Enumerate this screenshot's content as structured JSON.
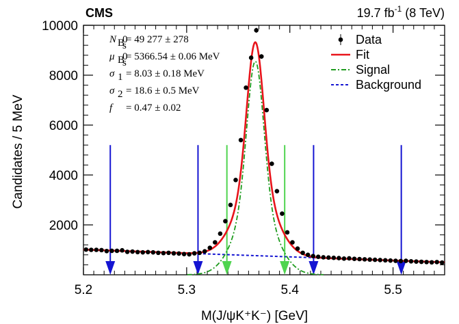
{
  "header": {
    "experiment": "CMS",
    "lumi_prefix": "19.7 fb",
    "lumi_sup": "-1",
    "lumi_suffix": " (8 TeV)"
  },
  "params": [
    {
      "sym": "N",
      "sub": "B",
      "subsub": "s",
      "sup": "0",
      "val": "= 49 277 ± 278"
    },
    {
      "sym": "μ",
      "sub": "B",
      "subsub": "s",
      "sup": "0",
      "val": "= 5366.54 ± 0.06 MeV"
    },
    {
      "sym": "σ",
      "sub": "1",
      "subsub": "",
      "sup": "",
      "val": "= 8.03 ± 0.18 MeV"
    },
    {
      "sym": "σ",
      "sub": "2",
      "subsub": "",
      "sup": "",
      "val": "= 18.6 ± 0.5 MeV"
    },
    {
      "sym": "f",
      "sub": "",
      "subsub": "",
      "sup": "",
      "val": "= 0.47 ± 0.02"
    }
  ],
  "legend": [
    {
      "label": "Data",
      "style": "marker",
      "color": "#000000"
    },
    {
      "label": "Fit",
      "style": "solid",
      "color": "#e8141b"
    },
    {
      "label": "Signal",
      "style": "dashdot",
      "color": "#1e9b1e"
    },
    {
      "label": "Background",
      "style": "dashed",
      "color": "#1414d2"
    }
  ],
  "chart_data": {
    "type": "scatter",
    "title": "",
    "xlabel": "M(J/ψK⁺K⁻) [GeV]",
    "ylabel": "Candidates / 5 MeV",
    "xlim": [
      5.2,
      5.55
    ],
    "ylim": [
      0,
      10000
    ],
    "xticks": [
      5.2,
      5.3,
      5.4,
      5.5
    ],
    "xtick_labels": [
      "5.2",
      "5.3",
      "5.4",
      "5.5"
    ],
    "yticks": [
      2000,
      4000,
      6000,
      8000,
      10000
    ],
    "ytick_labels": [
      "2000",
      "4000",
      "6000",
      "8000",
      "10000"
    ],
    "grid": false,
    "legend_position": "top-right",
    "data_series": {
      "name": "Data",
      "x": [
        5.2025,
        5.2075,
        5.2125,
        5.2175,
        5.2225,
        5.2275,
        5.2325,
        5.2375,
        5.2425,
        5.2475,
        5.2525,
        5.2575,
        5.2625,
        5.2675,
        5.2725,
        5.2775,
        5.2825,
        5.2875,
        5.2925,
        5.2975,
        5.3025,
        5.3075,
        5.3125,
        5.3175,
        5.3225,
        5.3275,
        5.3325,
        5.3375,
        5.3425,
        5.3475,
        5.3525,
        5.3575,
        5.3625,
        5.3675,
        5.3725,
        5.3775,
        5.3825,
        5.3875,
        5.3925,
        5.3975,
        5.4025,
        5.4075,
        5.4125,
        5.4175,
        5.4225,
        5.4275,
        5.4325,
        5.4375,
        5.4425,
        5.4475,
        5.4525,
        5.4575,
        5.4625,
        5.4675,
        5.4725,
        5.4775,
        5.4825,
        5.4875,
        5.4925,
        5.4975,
        5.5025,
        5.5075,
        5.5125,
        5.5175,
        5.5225,
        5.5275,
        5.5325,
        5.5375,
        5.5425,
        5.5475
      ],
      "y": [
        1010,
        1000,
        1000,
        990,
        950,
        960,
        960,
        980,
        920,
        930,
        910,
        900,
        910,
        900,
        880,
        870,
        880,
        860,
        850,
        830,
        820,
        860,
        880,
        940,
        1080,
        1300,
        1650,
        2150,
        2800,
        3800,
        5400,
        7500,
        8700,
        9800,
        8750,
        6600,
        4450,
        3350,
        2450,
        1700,
        1300,
        1050,
        880,
        800,
        750,
        720,
        700,
        690,
        680,
        670,
        650,
        660,
        640,
        630,
        620,
        610,
        600,
        590,
        580,
        570,
        560,
        550,
        560,
        540,
        530,
        520,
        510,
        500,
        510,
        490
      ]
    },
    "fit_model": {
      "n_signal": 49277,
      "mu": 5.36654,
      "sigma1": 0.00803,
      "sigma2": 0.0186,
      "f": 0.47,
      "bin_width": 0.005,
      "background_linear": {
        "x0": 5.2,
        "y0": 1010,
        "x1": 5.55,
        "y1": 500
      }
    },
    "arrows": [
      {
        "x": 5.226,
        "color": "#1414d2",
        "top": 5200
      },
      {
        "x": 5.311,
        "color": "#1414d2",
        "top": 5200
      },
      {
        "x": 5.339,
        "color": "#4fd44f",
        "top": 5200
      },
      {
        "x": 5.395,
        "color": "#4fd44f",
        "top": 5200
      },
      {
        "x": 5.423,
        "color": "#1414d2",
        "top": 5200
      },
      {
        "x": 5.508,
        "color": "#1414d2",
        "top": 5200
      }
    ]
  }
}
